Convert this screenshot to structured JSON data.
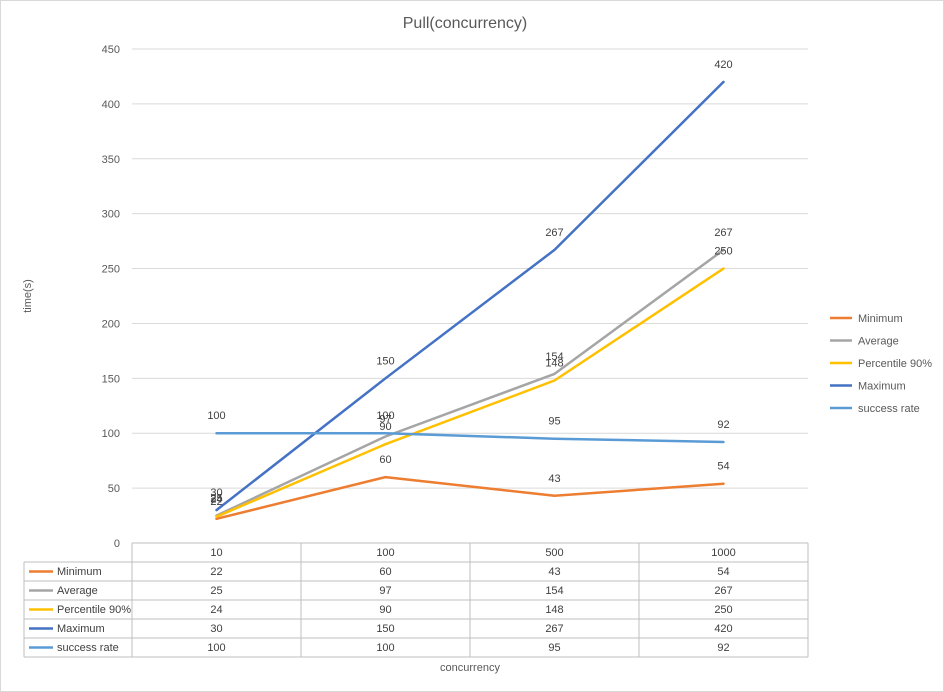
{
  "chart_data": {
    "type": "line",
    "title": "Pull(concurrency)",
    "xlabel": "concurrency",
    "ylabel": "time(s)",
    "categories": [
      "10",
      "100",
      "500",
      "1000"
    ],
    "ylim": [
      0,
      450
    ],
    "yticks": [
      0,
      50,
      100,
      150,
      200,
      250,
      300,
      350,
      400,
      450
    ],
    "grid": true,
    "legend_position": "right",
    "data_table": true,
    "series": [
      {
        "name": "Minimum",
        "color": "#ED7D31",
        "values": [
          22,
          60,
          43,
          54
        ]
      },
      {
        "name": "Average",
        "color": "#A5A5A5",
        "values": [
          25,
          97,
          154,
          267
        ]
      },
      {
        "name": "Percentile 90%",
        "color": "#FFC000",
        "values": [
          24,
          90,
          148,
          250
        ]
      },
      {
        "name": "Maximum",
        "color": "#4472C4",
        "values": [
          30,
          150,
          267,
          420
        ]
      },
      {
        "name": "success rate",
        "color": "#5B9BD5",
        "values": [
          100,
          100,
          95,
          92
        ]
      }
    ]
  }
}
